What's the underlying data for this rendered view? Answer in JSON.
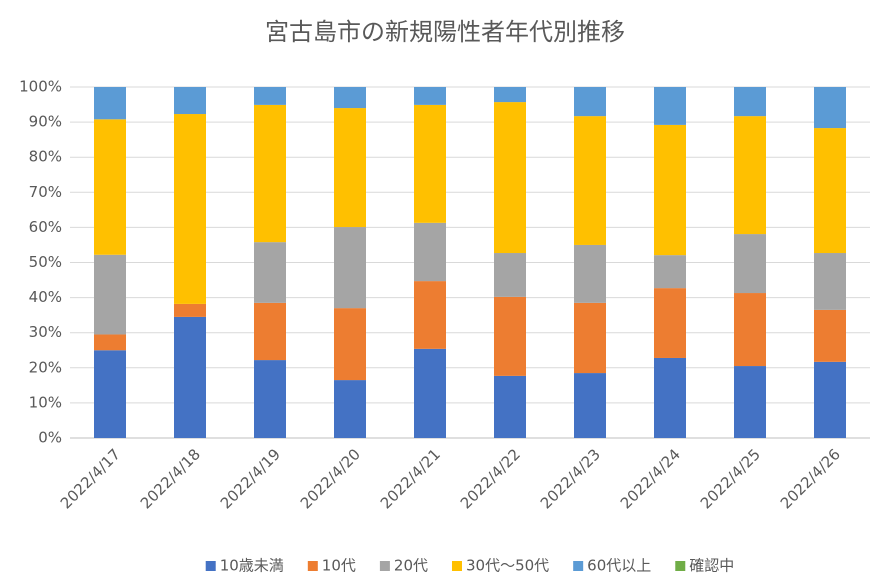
{
  "chart_data": {
    "type": "stacked_bar_100",
    "title": "宮古島市の新規陽性者年代別推移",
    "categories": [
      "2022/4/17",
      "2022/4/18",
      "2022/4/19",
      "2022/4/20",
      "2022/4/21",
      "2022/4/22",
      "2022/4/23",
      "2022/4/24",
      "2022/4/25",
      "2022/4/26"
    ],
    "series": [
      {
        "name": "10歳未満",
        "color": "#4472c4",
        "values": [
          25.0,
          34.5,
          22.2,
          16.5,
          25.4,
          17.7,
          18.5,
          22.8,
          20.5,
          21.7
        ]
      },
      {
        "name": "10代",
        "color": "#ed7d31",
        "values": [
          4.5,
          3.7,
          16.3,
          20.5,
          19.3,
          22.5,
          20.0,
          19.9,
          20.8,
          14.8
        ]
      },
      {
        "name": "20代",
        "color": "#a5a5a5",
        "values": [
          22.7,
          0,
          17.3,
          23.1,
          16.6,
          12.5,
          16.5,
          9.4,
          16.8,
          16.2
        ]
      },
      {
        "name": "30代～50代",
        "color": "#ffc000",
        "values": [
          38.6,
          54.1,
          39.1,
          33.9,
          33.6,
          43.0,
          36.7,
          37.1,
          33.6,
          35.6
        ]
      },
      {
        "name": "60代以上",
        "color": "#5b9bd5",
        "values": [
          9.2,
          7.7,
          5.1,
          6.0,
          5.1,
          4.3,
          8.3,
          10.8,
          8.3,
          11.7
        ]
      },
      {
        "name": "確認中",
        "color": "#70ad47",
        "values": [
          0,
          0,
          0,
          0,
          0,
          0,
          0,
          0,
          0,
          0
        ]
      }
    ],
    "ylim": [
      0,
      100
    ],
    "yticks": [
      {
        "value": 0,
        "label": "0%"
      },
      {
        "value": 10,
        "label": "10%"
      },
      {
        "value": 20,
        "label": "20%"
      },
      {
        "value": 30,
        "label": "30%"
      },
      {
        "value": 40,
        "label": "40%"
      },
      {
        "value": 50,
        "label": "50%"
      },
      {
        "value": 60,
        "label": "60%"
      },
      {
        "value": 70,
        "label": "70%"
      },
      {
        "value": 80,
        "label": "80%"
      },
      {
        "value": 90,
        "label": "90%"
      },
      {
        "value": 100,
        "label": "100%"
      }
    ],
    "grid": true,
    "legend": "bottom"
  }
}
